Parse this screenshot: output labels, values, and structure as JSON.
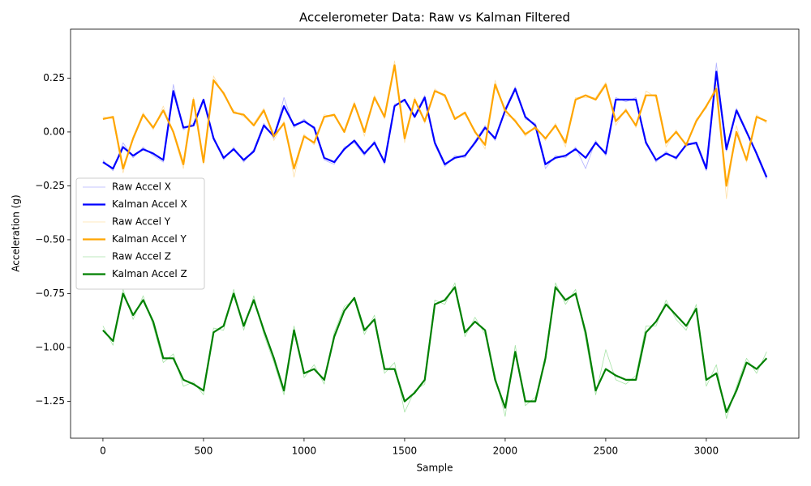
{
  "chart_data": {
    "type": "line",
    "title": "Accelerometer Data: Raw vs Kalman Filtered",
    "x_label": "Sample",
    "y_label": "Acceleration (g)",
    "x": [
      0,
      50,
      100,
      150,
      200,
      250,
      300,
      350,
      400,
      450,
      500,
      550,
      600,
      650,
      700,
      750,
      800,
      850,
      900,
      950,
      1000,
      1050,
      1100,
      1150,
      1200,
      1250,
      1300,
      1350,
      1400,
      1450,
      1500,
      1550,
      1600,
      1650,
      1700,
      1750,
      1800,
      1850,
      1900,
      1950,
      2000,
      2050,
      2100,
      2150,
      2200,
      2250,
      2300,
      2350,
      2400,
      2450,
      2500,
      2550,
      2600,
      2650,
      2700,
      2750,
      2800,
      2850,
      2900,
      2950,
      3000,
      3050,
      3100,
      3150,
      3200,
      3250,
      3300
    ],
    "series": [
      {
        "name": "Raw Accel X",
        "color": "#1f1fff",
        "linewidth": 0.8,
        "alpha": 0.35,
        "values": [
          -0.13,
          -0.18,
          -0.05,
          -0.12,
          -0.07,
          -0.11,
          -0.14,
          0.22,
          0.01,
          0.04,
          0.14,
          -0.02,
          -0.13,
          -0.07,
          -0.14,
          -0.08,
          0.04,
          -0.03,
          0.16,
          0.02,
          0.06,
          0.01,
          -0.13,
          -0.15,
          -0.07,
          -0.05,
          -0.11,
          -0.04,
          -0.15,
          0.13,
          0.14,
          0.08,
          0.17,
          -0.06,
          -0.16,
          -0.11,
          -0.12,
          -0.04,
          0.03,
          -0.04,
          0.11,
          0.21,
          0.06,
          0.04,
          -0.17,
          -0.11,
          -0.12,
          -0.07,
          -0.17,
          -0.04,
          -0.11,
          0.16,
          0.14,
          0.16,
          -0.04,
          -0.14,
          -0.09,
          -0.13,
          -0.05,
          -0.06,
          -0.18,
          0.32,
          -0.09,
          0.11,
          0.01,
          -0.11,
          -0.22
        ]
      },
      {
        "name": "Kalman Accel X",
        "color": "#0000ff",
        "linewidth": 2.2,
        "alpha": 1,
        "values": [
          -0.14,
          -0.17,
          -0.07,
          -0.11,
          -0.08,
          -0.1,
          -0.13,
          0.19,
          0.02,
          0.03,
          0.15,
          -0.03,
          -0.12,
          -0.08,
          -0.13,
          -0.09,
          0.03,
          -0.02,
          0.12,
          0.03,
          0.05,
          0.02,
          -0.12,
          -0.14,
          -0.08,
          -0.04,
          -0.1,
          -0.05,
          -0.14,
          0.12,
          0.15,
          0.07,
          0.16,
          -0.05,
          -0.15,
          -0.12,
          -0.11,
          -0.05,
          0.02,
          -0.03,
          0.1,
          0.2,
          0.07,
          0.03,
          -0.15,
          -0.12,
          -0.11,
          -0.08,
          -0.12,
          -0.05,
          -0.1,
          0.15,
          0.15,
          0.15,
          -0.05,
          -0.13,
          -0.1,
          -0.12,
          -0.06,
          -0.05,
          -0.17,
          0.28,
          -0.08,
          0.1,
          0.0,
          -0.1,
          -0.21
        ]
      },
      {
        "name": "Raw Accel Y",
        "color": "#ffa500",
        "linewidth": 0.8,
        "alpha": 0.35,
        "values": [
          0.07,
          0.06,
          -0.19,
          -0.02,
          0.09,
          0.01,
          0.12,
          -0.01,
          -0.17,
          0.16,
          -0.15,
          0.26,
          0.17,
          0.1,
          0.07,
          0.04,
          0.11,
          -0.04,
          0.05,
          -0.21,
          -0.01,
          -0.06,
          0.08,
          0.07,
          0.01,
          0.14,
          -0.02,
          0.17,
          0.06,
          0.33,
          -0.05,
          0.16,
          0.04,
          0.2,
          0.16,
          0.07,
          0.08,
          0.01,
          -0.08,
          0.24,
          0.08,
          0.06,
          -0.02,
          0.03,
          -0.04,
          0.04,
          -0.07,
          0.16,
          0.16,
          0.16,
          0.23,
          0.03,
          0.11,
          0.02,
          0.19,
          0.16,
          -0.07,
          0.01,
          -0.07,
          0.06,
          0.11,
          0.22,
          -0.31,
          0.03,
          -0.14,
          0.08,
          0.04
        ]
      },
      {
        "name": "Kalman Accel Y",
        "color": "#ffa500",
        "linewidth": 2.2,
        "alpha": 1,
        "values": [
          0.06,
          0.07,
          -0.17,
          -0.03,
          0.08,
          0.02,
          0.1,
          0.0,
          -0.15,
          0.15,
          -0.14,
          0.24,
          0.18,
          0.09,
          0.08,
          0.03,
          0.1,
          -0.02,
          0.04,
          -0.17,
          -0.02,
          -0.05,
          0.07,
          0.08,
          0.0,
          0.13,
          0.0,
          0.16,
          0.07,
          0.31,
          -0.03,
          0.15,
          0.05,
          0.19,
          0.17,
          0.06,
          0.09,
          0.0,
          -0.06,
          0.22,
          0.1,
          0.05,
          -0.01,
          0.02,
          -0.03,
          0.03,
          -0.05,
          0.15,
          0.17,
          0.15,
          0.22,
          0.05,
          0.1,
          0.03,
          0.17,
          0.17,
          -0.05,
          0.0,
          -0.06,
          0.05,
          0.12,
          0.2,
          -0.25,
          0.0,
          -0.13,
          0.07,
          0.05
        ]
      },
      {
        "name": "Raw Accel Z",
        "color": "#00b000",
        "linewidth": 0.8,
        "alpha": 0.35,
        "values": [
          -0.9,
          -0.99,
          -0.73,
          -0.87,
          -0.76,
          -0.9,
          -1.07,
          -1.03,
          -1.18,
          -1.16,
          -1.22,
          -0.91,
          -0.92,
          -0.73,
          -0.92,
          -0.76,
          -0.94,
          -1.07,
          -1.22,
          -0.9,
          -1.14,
          -1.08,
          -1.17,
          -0.93,
          -0.81,
          -0.78,
          -0.94,
          -0.85,
          -1.12,
          -1.07,
          -1.3,
          -1.2,
          -1.17,
          -0.78,
          -0.8,
          -0.7,
          -0.95,
          -0.86,
          -0.94,
          -1.13,
          -1.32,
          -0.99,
          -1.27,
          -1.23,
          -1.07,
          -0.7,
          -0.8,
          -0.73,
          -0.96,
          -1.22,
          -1.01,
          -1.15,
          -1.17,
          -1.13,
          -0.9,
          -0.9,
          -0.78,
          -0.87,
          -0.92,
          -0.8,
          -1.18,
          -1.08,
          -1.33,
          -1.18,
          -1.05,
          -1.12,
          -1.02
        ]
      },
      {
        "name": "Kalman Accel Z",
        "color": "#008000",
        "linewidth": 2.2,
        "alpha": 1,
        "values": [
          -0.92,
          -0.97,
          -0.75,
          -0.85,
          -0.78,
          -0.88,
          -1.05,
          -1.05,
          -1.15,
          -1.17,
          -1.2,
          -0.93,
          -0.9,
          -0.75,
          -0.9,
          -0.78,
          -0.92,
          -1.05,
          -1.2,
          -0.92,
          -1.12,
          -1.1,
          -1.15,
          -0.95,
          -0.83,
          -0.77,
          -0.92,
          -0.87,
          -1.1,
          -1.1,
          -1.25,
          -1.21,
          -1.15,
          -0.8,
          -0.78,
          -0.72,
          -0.93,
          -0.88,
          -0.92,
          -1.15,
          -1.28,
          -1.02,
          -1.25,
          -1.25,
          -1.05,
          -0.72,
          -0.78,
          -0.75,
          -0.93,
          -1.2,
          -1.1,
          -1.13,
          -1.15,
          -1.15,
          -0.93,
          -0.88,
          -0.8,
          -0.85,
          -0.9,
          -0.82,
          -1.15,
          -1.12,
          -1.3,
          -1.2,
          -1.07,
          -1.1,
          -1.05
        ]
      }
    ],
    "xlim": [
      -161,
      3460
    ],
    "ylim": [
      -1.421,
      0.477
    ],
    "xticks": [
      0,
      500,
      1000,
      1500,
      2000,
      2500,
      3000
    ],
    "yticks": [
      {
        "value": -1.25,
        "label": "−1.25"
      },
      {
        "value": -1.0,
        "label": "−1.00"
      },
      {
        "value": -0.75,
        "label": "−0.75"
      },
      {
        "value": -0.5,
        "label": "−0.50"
      },
      {
        "value": -0.25,
        "label": "−0.25"
      },
      {
        "value": 0,
        "label": "0.00"
      },
      {
        "value": 0.25,
        "label": "0.25"
      }
    ],
    "grid": false,
    "legend": "center left"
  }
}
